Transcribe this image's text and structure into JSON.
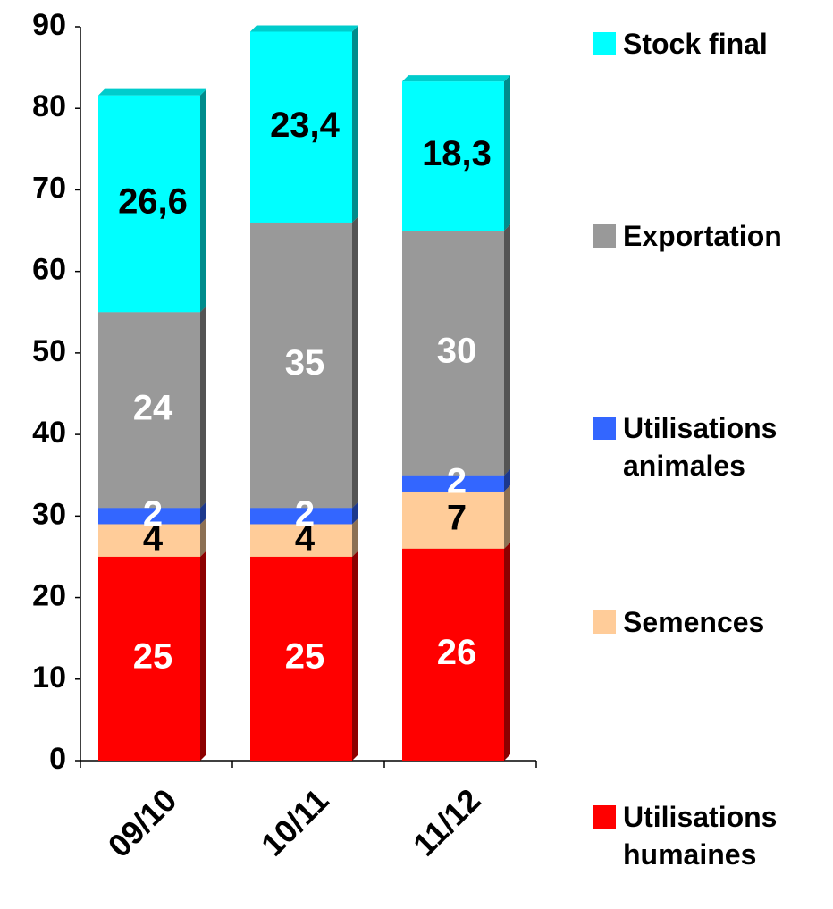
{
  "chart_data": {
    "type": "stacked_bar_3d",
    "categories": [
      "09/10",
      "10/11",
      "11/12"
    ],
    "series": [
      {
        "name": "Utilisations humaines",
        "color": "#ff0000",
        "label_color": "#ffffff",
        "values": [
          25,
          25,
          26
        ]
      },
      {
        "name": "Semences",
        "color": "#ffcc99",
        "label_color": "#000000",
        "values": [
          4,
          4,
          7
        ]
      },
      {
        "name": "Utilisations animales",
        "color": "#3366ff",
        "label_color": "#ffffff",
        "values": [
          2,
          2,
          2
        ]
      },
      {
        "name": "Exportation",
        "color": "#999999",
        "label_color": "#ffffff",
        "values": [
          24,
          35,
          30
        ]
      },
      {
        "name": "Stock final",
        "color": "#00ffff",
        "label_color": "#000000",
        "values": [
          26.6,
          23.4,
          18.3
        ],
        "value_labels": [
          "26,6",
          "23,4",
          "18,3"
        ]
      }
    ],
    "ylim": [
      0,
      90
    ],
    "yticks": [
      0,
      10,
      20,
      30,
      40,
      50,
      60,
      70,
      80,
      90
    ],
    "legend": "right"
  }
}
